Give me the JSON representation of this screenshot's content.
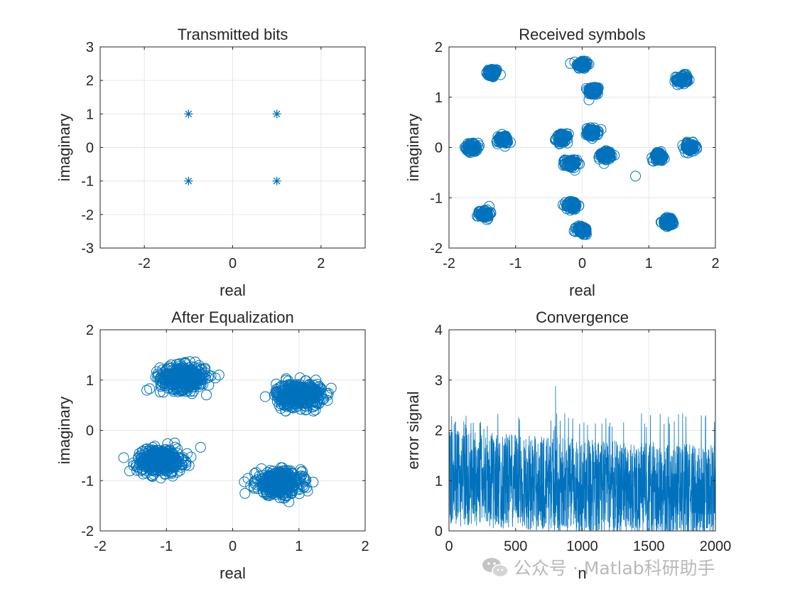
{
  "figure": {
    "watermark": "公众号 · Matlab科研助手",
    "colors": {
      "series": "#0072BD",
      "axis": "#262626",
      "grid": "#e6e6e6",
      "background": "#ffffff",
      "watermark": "#b9b9b9"
    }
  },
  "chart_data": [
    {
      "id": "transmitted",
      "type": "scatter",
      "title": "Transmitted bits",
      "xlabel": "real",
      "ylabel": "imaginary",
      "xlim": [
        -3,
        3
      ],
      "ylim": [
        -3,
        3
      ],
      "xticks": [
        -2,
        0,
        2
      ],
      "yticks": [
        -3,
        -2,
        -1,
        0,
        1,
        2,
        3
      ],
      "grid": true,
      "marker": "asterisk",
      "points": [
        [
          -1,
          1
        ],
        [
          1,
          1
        ],
        [
          -1,
          -1
        ],
        [
          1,
          -1
        ]
      ]
    },
    {
      "id": "received",
      "type": "scatter",
      "title": "Received symbols",
      "xlabel": "real",
      "ylabel": "imaginary",
      "xlim": [
        -2,
        2
      ],
      "ylim": [
        -2,
        2
      ],
      "xticks": [
        -2,
        -1,
        0,
        1,
        2
      ],
      "yticks": [
        -2,
        -1,
        0,
        1,
        2
      ],
      "grid": true,
      "marker": "circle",
      "clusters": [
        {
          "center": [
            -1.35,
            1.48
          ],
          "spread": 0.08
        },
        {
          "center": [
            0.0,
            1.65
          ],
          "spread": 0.08
        },
        {
          "center": [
            0.17,
            1.13
          ],
          "spread": 0.08
        },
        {
          "center": [
            1.5,
            1.35
          ],
          "spread": 0.08
        },
        {
          "center": [
            -1.65,
            0.0
          ],
          "spread": 0.08
        },
        {
          "center": [
            -1.2,
            0.15
          ],
          "spread": 0.08
        },
        {
          "center": [
            -0.3,
            0.18
          ],
          "spread": 0.08
        },
        {
          "center": [
            0.15,
            0.3
          ],
          "spread": 0.08
        },
        {
          "center": [
            0.35,
            -0.15
          ],
          "spread": 0.08
        },
        {
          "center": [
            -0.17,
            -0.32
          ],
          "spread": 0.08
        },
        {
          "center": [
            1.15,
            -0.18
          ],
          "spread": 0.08
        },
        {
          "center": [
            1.62,
            0.0
          ],
          "spread": 0.08
        },
        {
          "center": [
            -1.47,
            -1.32
          ],
          "spread": 0.08
        },
        {
          "center": [
            -0.15,
            -1.15
          ],
          "spread": 0.08
        },
        {
          "center": [
            0.0,
            -1.65
          ],
          "spread": 0.08
        },
        {
          "center": [
            1.3,
            -1.48
          ],
          "spread": 0.08
        }
      ],
      "outliers": [
        [
          0.8,
          -0.57
        ]
      ]
    },
    {
      "id": "equalized",
      "type": "scatter",
      "title": "After Equalization",
      "xlabel": "real",
      "ylabel": "imaginary",
      "xlim": [
        -2,
        2
      ],
      "ylim": [
        -2,
        2
      ],
      "xticks": [
        -2,
        -1,
        0,
        1,
        2
      ],
      "yticks": [
        -2,
        -1,
        0,
        1,
        2
      ],
      "grid": true,
      "marker": "circle",
      "clusters": [
        {
          "center": [
            -0.75,
            1.05
          ],
          "spread": 0.2
        },
        {
          "center": [
            1.0,
            0.7
          ],
          "spread": 0.2
        },
        {
          "center": [
            -1.1,
            -0.6
          ],
          "spread": 0.2
        },
        {
          "center": [
            0.7,
            -1.05
          ],
          "spread": 0.2
        }
      ]
    },
    {
      "id": "convergence",
      "type": "line",
      "title": "Convergence",
      "xlabel": "n",
      "ylabel": "error signal",
      "xlim": [
        0,
        2000
      ],
      "ylim": [
        0,
        4
      ],
      "xticks": [
        0,
        500,
        1000,
        1500,
        2000
      ],
      "yticks": [
        0,
        1,
        2,
        3,
        4
      ],
      "grid": true,
      "samples": 2000,
      "mean_start": 1.05,
      "mean_end": 0.75,
      "typical_max": 2.0,
      "peak_value": 2.88,
      "peak_at": 800
    }
  ]
}
